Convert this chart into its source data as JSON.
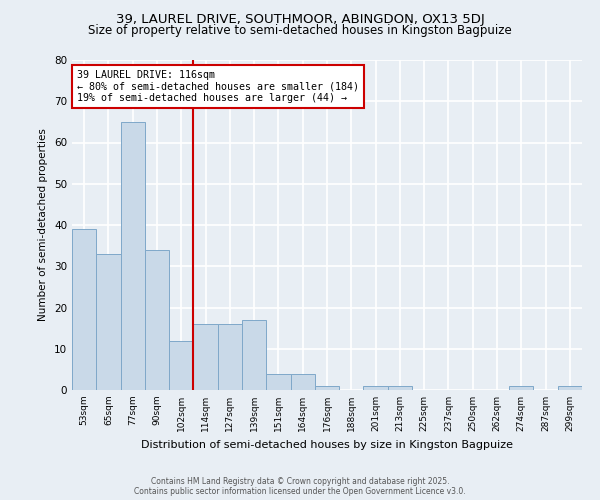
{
  "title": "39, LAUREL DRIVE, SOUTHMOOR, ABINGDON, OX13 5DJ",
  "subtitle": "Size of property relative to semi-detached houses in Kingston Bagpuize",
  "xlabel": "Distribution of semi-detached houses by size in Kingston Bagpuize",
  "ylabel": "Number of semi-detached properties",
  "categories": [
    "53sqm",
    "65sqm",
    "77sqm",
    "90sqm",
    "102sqm",
    "114sqm",
    "127sqm",
    "139sqm",
    "151sqm",
    "164sqm",
    "176sqm",
    "188sqm",
    "201sqm",
    "213sqm",
    "225sqm",
    "237sqm",
    "250sqm",
    "262sqm",
    "274sqm",
    "287sqm",
    "299sqm"
  ],
  "values": [
    39,
    33,
    65,
    34,
    12,
    16,
    16,
    17,
    4,
    4,
    1,
    0,
    1,
    1,
    0,
    0,
    0,
    0,
    1,
    0,
    1
  ],
  "bar_color": "#c9d9e8",
  "bar_edge_color": "#7fa8c9",
  "vline_pos": 4.5,
  "vline_color": "#cc0000",
  "annotation_title": "39 LAUREL DRIVE: 116sqm",
  "annotation_line1": "← 80% of semi-detached houses are smaller (184)",
  "annotation_line2": "19% of semi-detached houses are larger (44) →",
  "annotation_box_color": "#cc0000",
  "ylim": [
    0,
    80
  ],
  "yticks": [
    0,
    10,
    20,
    30,
    40,
    50,
    60,
    70,
    80
  ],
  "footer1": "Contains HM Land Registry data © Crown copyright and database right 2025.",
  "footer2": "Contains public sector information licensed under the Open Government Licence v3.0.",
  "bg_color": "#e8eef4",
  "title_fontsize": 9.5,
  "subtitle_fontsize": 8.5
}
